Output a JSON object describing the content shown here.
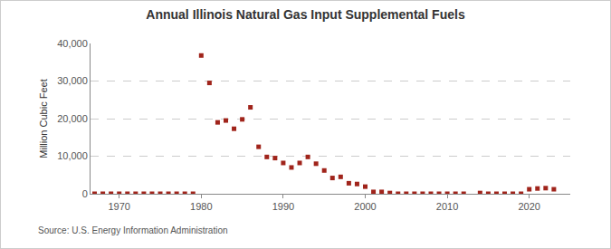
{
  "chart_data": {
    "type": "scatter",
    "title": "Annual Illinois Natural Gas Input Supplemental Fuels",
    "y_label": "Million Cubic Feet",
    "source": "Source: U.S. Energy Information Administration",
    "x": [
      1967,
      1968,
      1969,
      1970,
      1971,
      1972,
      1973,
      1974,
      1975,
      1976,
      1977,
      1978,
      1979,
      1980,
      1981,
      1982,
      1983,
      1984,
      1985,
      1986,
      1987,
      1988,
      1989,
      1990,
      1991,
      1992,
      1993,
      1994,
      1995,
      1996,
      1997,
      1998,
      1999,
      2000,
      2001,
      2002,
      2003,
      2004,
      2005,
      2006,
      2007,
      2008,
      2009,
      2010,
      2011,
      2012,
      2013,
      2014,
      2015,
      2016,
      2017,
      2018,
      2019,
      2020,
      2021,
      2022,
      2023
    ],
    "values": [
      0,
      0,
      0,
      0,
      0,
      0,
      0,
      0,
      0,
      0,
      0,
      0,
      0,
      36800,
      29500,
      19000,
      19500,
      17300,
      19800,
      23000,
      12500,
      9800,
      9500,
      8200,
      7000,
      8200,
      9800,
      8000,
      6200,
      4200,
      4500,
      2800,
      2600,
      1900,
      500,
      500,
      200,
      0,
      0,
      0,
      0,
      0,
      0,
      0,
      0,
      0,
      null,
      200,
      0,
      0,
      0,
      0,
      0,
      1200,
      1400,
      1500,
      1200
    ],
    "color": "#a0241b",
    "marker": "square",
    "xlim": [
      1966.5,
      2025
    ],
    "xticks": [
      1970,
      1980,
      1990,
      2000,
      2010,
      2020
    ],
    "ylim": [
      0,
      40000
    ],
    "yticks": [
      0,
      {
        "value": 10000,
        "label": "10,000"
      },
      {
        "value": 20000,
        "label": "20,000"
      },
      {
        "value": 30000,
        "label": "30,000"
      },
      {
        "value": 40000,
        "label": "40,000"
      }
    ],
    "grid": true
  }
}
